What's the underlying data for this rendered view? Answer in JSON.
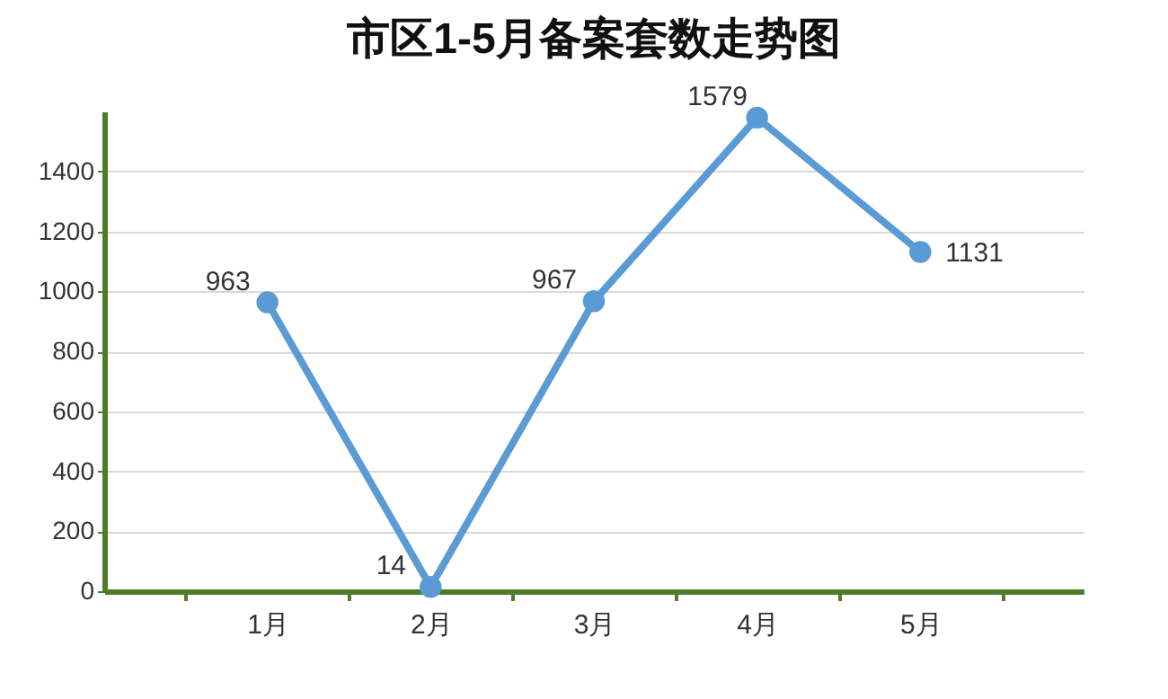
{
  "chart_data": {
    "type": "line",
    "title": "市区1-5月备案套数走势图",
    "categories": [
      "1月",
      "2月",
      "3月",
      "4月",
      "5月"
    ],
    "series": [
      {
        "color": "#5b9bd5",
        "values": [
          963,
          14,
          967,
          1579,
          1131
        ]
      }
    ],
    "ylim": [
      0,
      1600
    ],
    "yticks": [
      0,
      200,
      400,
      600,
      800,
      1000,
      1200,
      1400
    ],
    "grid": "y",
    "marker": "circle",
    "line_style": "solid",
    "data_labels": true,
    "legend": false
  }
}
